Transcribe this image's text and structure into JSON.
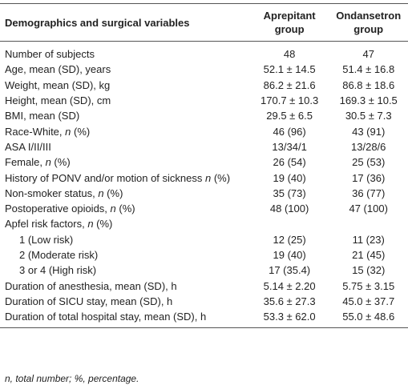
{
  "table": {
    "header": [
      "Demographics and surgical variables",
      "Aprepitant group",
      "Ondansetron group"
    ],
    "rows": [
      {
        "label": [
          "Number of subjects"
        ],
        "values": [
          "48",
          "47"
        ]
      },
      {
        "label": [
          "Age, mean (SD), years"
        ],
        "values": [
          "52.1 ± 14.5",
          "51.4 ± 16.8"
        ]
      },
      {
        "label": [
          "Weight, mean (SD), kg"
        ],
        "values": [
          "86.2 ± 21.6",
          "86.8 ± 18.6"
        ]
      },
      {
        "label": [
          "Height, mean (SD), cm"
        ],
        "values": [
          "170.7 ± 10.3",
          "169.3 ± 10.5"
        ]
      },
      {
        "label": [
          "BMI, mean (SD)"
        ],
        "values": [
          "29.5 ± 6.5",
          "30.5 ± 7.3"
        ]
      },
      {
        "label": [
          "Race-White, ",
          "n",
          " (%)"
        ],
        "values": [
          "46 (96)",
          "43 (91)"
        ]
      },
      {
        "label": [
          "ASA I/II/III"
        ],
        "values": [
          "13/34/1",
          "13/28/6"
        ]
      },
      {
        "label": [
          "Female, ",
          "n",
          " (%)"
        ],
        "values": [
          "26 (54)",
          "25 (53)"
        ]
      },
      {
        "label": [
          "History of PONV and/or motion of sickness ",
          "n",
          " (%)"
        ],
        "values": [
          "19 (40)",
          "17 (36)"
        ]
      },
      {
        "label": [
          "Non-smoker status, ",
          "n",
          " (%)"
        ],
        "values": [
          "35 (73)",
          "36 (77)"
        ]
      },
      {
        "label": [
          "Postoperative opioids, ",
          "n",
          " (%)"
        ],
        "values": [
          "48 (100)",
          "47 (100)"
        ]
      },
      {
        "label": [
          "Apfel risk factors, ",
          "n",
          " (%)"
        ],
        "values": []
      },
      {
        "label": [
          "1 (Low risk)"
        ],
        "values": [
          "12 (25)",
          "11 (23)"
        ],
        "indent": true
      },
      {
        "label": [
          "2 (Moderate risk)"
        ],
        "values": [
          "19 (40)",
          "21 (45)"
        ],
        "indent": true
      },
      {
        "label": [
          "3 or 4 (High risk)"
        ],
        "values": [
          "17 (35.4)",
          "15 (32)"
        ],
        "indent": true
      },
      {
        "label": [
          "Duration of anesthesia, mean (SD), h"
        ],
        "values": [
          "5.14 ± 2.20",
          "5.75 ± 3.15"
        ]
      },
      {
        "label": [
          "Duration of SICU stay, mean (SD), h"
        ],
        "values": [
          "35.6 ± 27.3",
          "45.0 ± 37.7"
        ]
      },
      {
        "label": [
          "Duration of total hospital stay, mean (SD), h"
        ],
        "values": [
          "53.3 ± 62.0",
          "55.0 ± 48.6"
        ]
      }
    ],
    "footnote": "n, total number; %, percentage."
  }
}
